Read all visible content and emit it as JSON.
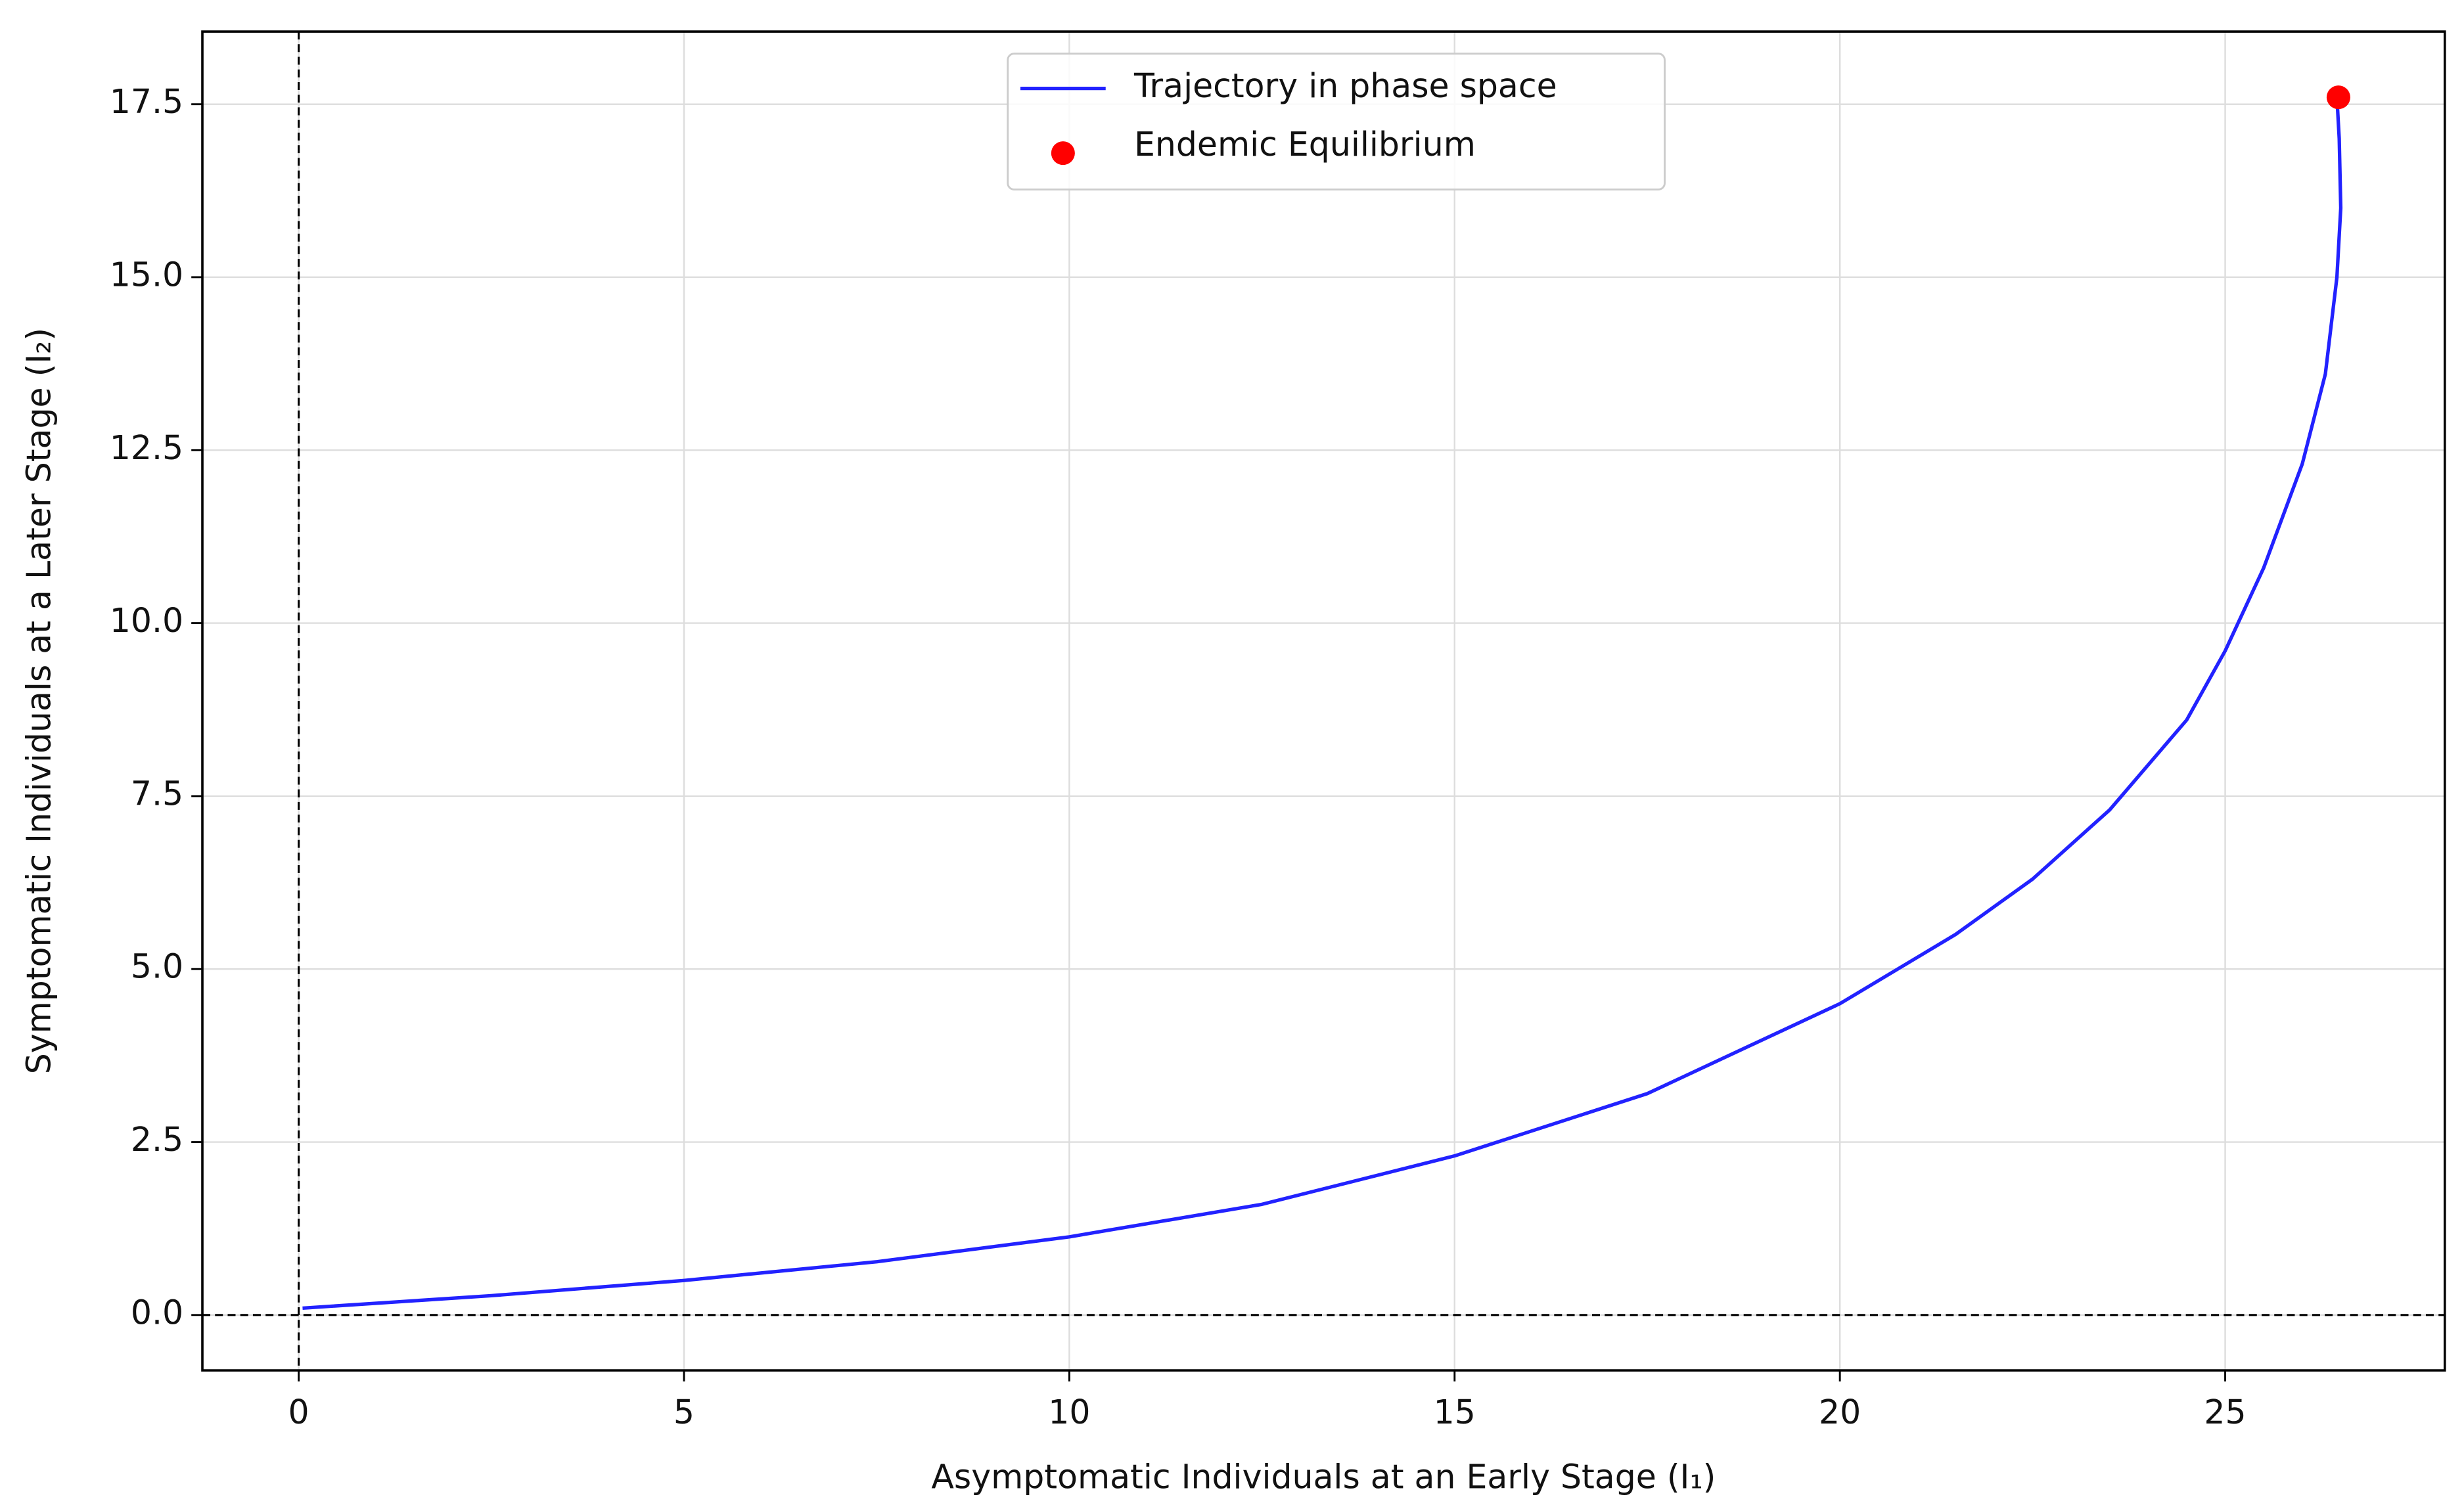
{
  "chart_data": {
    "type": "line",
    "x_label": "Asymptomatic Individuals at an Early Stage (I₁)",
    "y_label": "Symptomatic Individuals at a Later Stage (I₂)",
    "x": [
      0.05,
      2.5,
      5,
      7.5,
      10,
      12.5,
      15,
      17.5,
      20,
      21.5,
      22.5,
      23.5,
      24.5,
      25,
      25.5,
      26,
      26.3,
      26.45,
      26.5,
      26.48,
      26.45
    ],
    "series": [
      {
        "name": "Trajectory in phase space",
        "color": "#2222ff",
        "values": [
          0.1,
          0.28,
          0.5,
          0.77,
          1.13,
          1.6,
          2.3,
          3.2,
          4.5,
          5.5,
          6.3,
          7.3,
          8.6,
          9.6,
          10.8,
          12.3,
          13.6,
          15.0,
          16.0,
          17.0,
          17.6
        ]
      }
    ],
    "points": [
      {
        "name": "Endemic Equilibrium",
        "color": "#ff0000",
        "x": 26.47,
        "y": 17.6
      }
    ],
    "reference_lines": {
      "x": 0,
      "y": 0
    },
    "xlim": [
      -1.25,
      27.85
    ],
    "ylim": [
      -0.8,
      18.55
    ],
    "xticks": [
      0,
      5,
      10,
      15,
      20,
      25
    ],
    "yticks": [
      {
        "value": 0,
        "label": "0.0"
      },
      2.5,
      {
        "value": 5,
        "label": "5.0"
      },
      7.5,
      {
        "value": 10,
        "label": "10.0"
      },
      12.5,
      {
        "value": 15,
        "label": "15.0"
      },
      17.5
    ],
    "grid": true,
    "legend": "upper center"
  }
}
